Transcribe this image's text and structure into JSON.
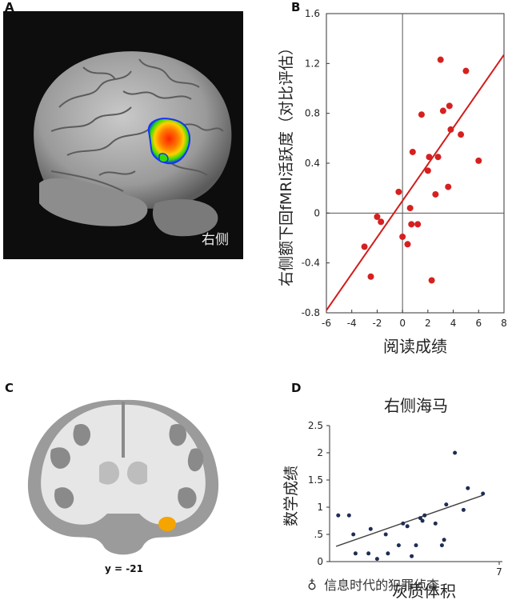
{
  "panels": {
    "a": {
      "label": "A",
      "brain_label": "右侧"
    },
    "b": {
      "label": "B"
    },
    "c": {
      "label": "C",
      "caption": "y = -21"
    },
    "d": {
      "label": "D"
    }
  },
  "watermark": {
    "text": "信息时代的犯罪侦查"
  },
  "colors": {
    "red_point": "#d62020",
    "red_line": "#d21c1c",
    "navy_point": "#1e2d52",
    "dark_line": "#444444",
    "activation": [
      "#ff2200",
      "#ffbb00",
      "#33dd00",
      "#1133ff"
    ]
  },
  "chart_data": [
    {
      "id": "B",
      "type": "scatter",
      "title": "",
      "xlabel": "阅读成绩",
      "ylabel": "右侧额下回fMRI活跃度（对比评估）",
      "xlim": [
        -6,
        8
      ],
      "ylim": [
        -0.8,
        1.6
      ],
      "xticks": [
        -6,
        -4,
        -2,
        0,
        2,
        4,
        6,
        8
      ],
      "yticks": [
        -0.8,
        -0.4,
        0,
        0.4,
        0.8,
        1.2,
        1.6
      ],
      "ytick_labels": [
        "-0.8",
        "-0.4",
        "0",
        "0.4",
        "0.8",
        "1.2",
        "1.6"
      ],
      "grid": false,
      "zero_lines": true,
      "points": [
        [
          -3.0,
          -0.27
        ],
        [
          -2.5,
          -0.51
        ],
        [
          -2.0,
          -0.03
        ],
        [
          -1.7,
          -0.07
        ],
        [
          -0.3,
          0.17
        ],
        [
          0.0,
          -0.19
        ],
        [
          0.4,
          -0.25
        ],
        [
          0.6,
          0.04
        ],
        [
          0.7,
          -0.09
        ],
        [
          0.8,
          0.49
        ],
        [
          1.2,
          -0.09
        ],
        [
          1.5,
          0.79
        ],
        [
          2.0,
          0.34
        ],
        [
          2.1,
          0.45
        ],
        [
          2.3,
          -0.54
        ],
        [
          2.6,
          0.15
        ],
        [
          2.8,
          0.45
        ],
        [
          3.0,
          1.23
        ],
        [
          3.2,
          0.82
        ],
        [
          3.6,
          0.21
        ],
        [
          3.7,
          0.86
        ],
        [
          3.8,
          0.67
        ],
        [
          4.6,
          0.63
        ],
        [
          5.0,
          1.14
        ],
        [
          6.0,
          0.42
        ]
      ],
      "trendline": {
        "x": [
          -6,
          8
        ],
        "y": [
          -0.78,
          1.27
        ]
      }
    },
    {
      "id": "D",
      "type": "scatter",
      "title": "右侧海马",
      "xlabel": "灰质体积",
      "ylabel": "数学成绩",
      "xlim": [
        3,
        7
      ],
      "ylim": [
        0,
        2.5
      ],
      "xticks": [
        7
      ],
      "yticks": [
        0,
        0.5,
        1,
        1.5,
        2,
        2.5
      ],
      "ytick_labels": [
        "0",
        ".5",
        "1",
        "1.5",
        "2",
        "2.5"
      ],
      "grid": false,
      "points": [
        [
          3.2,
          0.85
        ],
        [
          3.45,
          0.85
        ],
        [
          3.55,
          0.5
        ],
        [
          3.6,
          0.15
        ],
        [
          3.9,
          0.15
        ],
        [
          3.95,
          0.6
        ],
        [
          4.1,
          0.05
        ],
        [
          4.3,
          0.5
        ],
        [
          4.6,
          0.3
        ],
        [
          4.7,
          0.7
        ],
        [
          4.8,
          0.65
        ],
        [
          4.9,
          0.1
        ],
        [
          5.0,
          0.3
        ],
        [
          5.1,
          0.8
        ],
        [
          5.15,
          0.75
        ],
        [
          5.2,
          0.85
        ],
        [
          5.45,
          0.7
        ],
        [
          5.65,
          0.4
        ],
        [
          5.7,
          1.05
        ],
        [
          5.9,
          2.0
        ],
        [
          6.1,
          0.95
        ],
        [
          6.2,
          1.35
        ],
        [
          6.55,
          1.25
        ],
        [
          5.6,
          0.3
        ],
        [
          4.35,
          0.15
        ]
      ],
      "trendline": {
        "x": [
          3.15,
          6.55
        ],
        "y": [
          0.28,
          1.22
        ]
      }
    }
  ]
}
